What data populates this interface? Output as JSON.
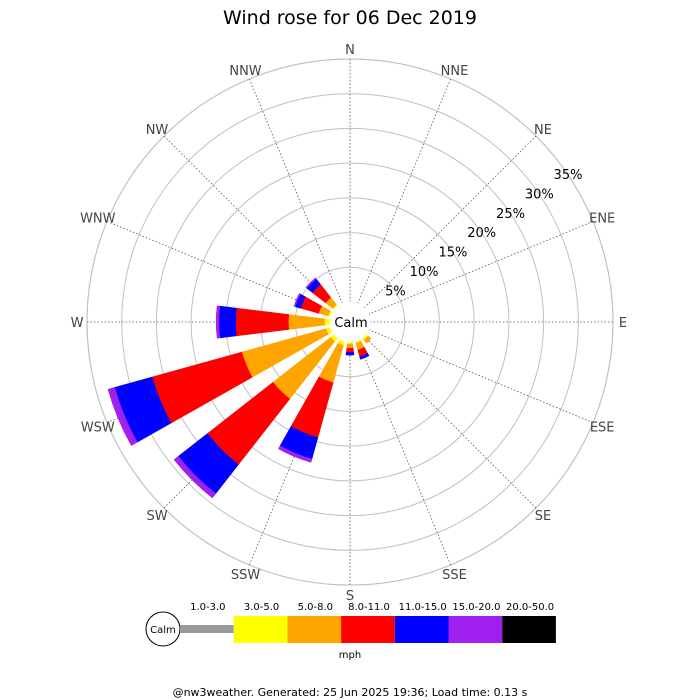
{
  "chart_data": {
    "type": "windrose",
    "title": "Wind rose for 06 Dec 2019",
    "directions": [
      "N",
      "NNE",
      "NE",
      "ENE",
      "E",
      "ESE",
      "SE",
      "SSE",
      "S",
      "SSW",
      "SW",
      "WSW",
      "W",
      "WNW",
      "NW",
      "NNW"
    ],
    "ring_labels": [
      "5%",
      "10%",
      "15%",
      "20%",
      "25%",
      "30%",
      "35%"
    ],
    "rmax": 35,
    "calm_label": "Calm",
    "unit_label": "mph",
    "speed_bins": [
      {
        "label": "1.0-3.0",
        "color": "#999999"
      },
      {
        "label": "3.0-5.0",
        "color": "#ffff00"
      },
      {
        "label": "5.0-8.0",
        "color": "#ffa500"
      },
      {
        "label": "8.0-11.0",
        "color": "#ff0000"
      },
      {
        "label": "11.0-15.0",
        "color": "#0000ff"
      },
      {
        "label": "15.0-20.0",
        "color": "#a020f0"
      },
      {
        "label": "20.0-50.0",
        "color": "#000000"
      }
    ],
    "series": [
      {
        "direction": "NW",
        "values": [
          0,
          0.3,
          1.3,
          2.4,
          1.0,
          0.2,
          0
        ]
      },
      {
        "direction": "WNW",
        "values": [
          0,
          0.4,
          1.4,
          2.7,
          0.8,
          0.2,
          0
        ]
      },
      {
        "direction": "W",
        "values": [
          0,
          0.8,
          5.2,
          7.6,
          2.4,
          0.4,
          0
        ]
      },
      {
        "direction": "WSW",
        "values": [
          0,
          0.7,
          12.6,
          13.4,
          5.6,
          1.0,
          0
        ]
      },
      {
        "direction": "SW",
        "values": [
          0,
          0.7,
          10.5,
          12.0,
          5.3,
          0.8,
          0
        ]
      },
      {
        "direction": "SSW",
        "values": [
          0,
          0.6,
          5.6,
          8.2,
          3.2,
          0.5,
          0
        ]
      },
      {
        "direction": "S",
        "values": [
          0,
          0.3,
          0.6,
          0.6,
          0.4,
          0,
          0
        ]
      },
      {
        "direction": "SSE",
        "values": [
          0,
          0.3,
          1.0,
          1.0,
          0.4,
          0,
          0
        ]
      },
      {
        "direction": "SE",
        "values": [
          0,
          0.4,
          0.6,
          0,
          0,
          0,
          0
        ]
      }
    ]
  },
  "footer": "@nw3weather. Generated: 25 Jun 2025 19:36; Load time: 0.13 s"
}
